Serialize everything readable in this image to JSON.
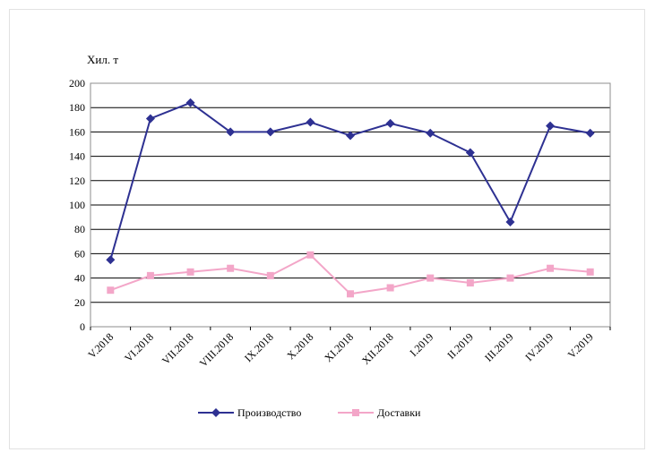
{
  "chart_data": {
    "type": "line",
    "title": "",
    "ylabel": "Хил. т",
    "xlabel": "",
    "ylim": [
      0,
      200
    ],
    "yticks": [
      0,
      20,
      40,
      60,
      80,
      100,
      120,
      140,
      160,
      180,
      200
    ],
    "grid": true,
    "legend_position": "bottom",
    "categories": [
      "V.2018",
      "VI.2018",
      "VII.2018",
      "VIII.2018",
      "IX.2018",
      "X.2018",
      "XI.2018",
      "XII.2018",
      "I.2019",
      "II.2019",
      "III.2019",
      "IV.2019",
      "V.2019"
    ],
    "series": [
      {
        "name": "Производство",
        "color": "#2e3192",
        "marker": "diamond",
        "values": [
          55,
          171,
          184,
          160,
          160,
          168,
          157,
          167,
          159,
          143,
          86,
          165,
          159
        ]
      },
      {
        "name": "Доставки",
        "color": "#f3a6c8",
        "marker": "square",
        "values": [
          30,
          42,
          45,
          48,
          42,
          59,
          27,
          32,
          40,
          36,
          40,
          48,
          45
        ]
      }
    ]
  }
}
